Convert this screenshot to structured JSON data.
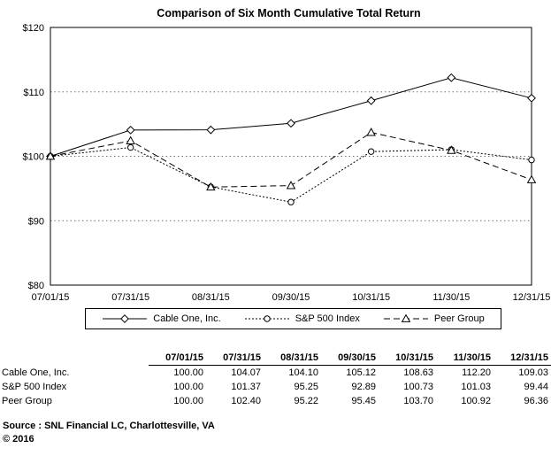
{
  "chart": {
    "title": "Comparison of Six Month Cumulative Total Return"
  },
  "chart_data": {
    "type": "line",
    "title": "Comparison of Six Month Cumulative Total Return",
    "x": [
      "07/01/15",
      "07/31/15",
      "08/31/15",
      "09/30/15",
      "10/31/15",
      "11/30/15",
      "12/31/15"
    ],
    "series": [
      {
        "name": "Cable One, Inc.",
        "values": [
          100.0,
          104.07,
          104.1,
          105.12,
          108.63,
          112.2,
          109.03
        ],
        "marker": "diamond",
        "dash": "solid"
      },
      {
        "name": "S&P 500 Index",
        "values": [
          100.0,
          101.37,
          95.25,
          92.89,
          100.73,
          101.03,
          99.44
        ],
        "marker": "circle",
        "dash": "dotted"
      },
      {
        "name": "Peer Group",
        "values": [
          100.0,
          102.4,
          95.22,
          95.45,
          103.7,
          100.92,
          96.36
        ],
        "marker": "triangle",
        "dash": "dashed"
      }
    ],
    "ylim": [
      80,
      120
    ],
    "ytick_step": 10,
    "ytick_labels": [
      "$80",
      "$90",
      "$100",
      "$110",
      "$120"
    ],
    "grid": true,
    "legend_position": "bottom",
    "line_color": "#000000",
    "background": "#ffffff"
  },
  "table": {
    "columns": [
      "07/01/15",
      "07/31/15",
      "08/31/15",
      "09/30/15",
      "10/31/15",
      "11/30/15",
      "12/31/15"
    ],
    "rows": [
      {
        "label": "Cable One,  Inc.",
        "values": [
          "100.00",
          "104.07",
          "104.10",
          "105.12",
          "108.63",
          "112.20",
          "109.03"
        ]
      },
      {
        "label": "S&P 500 Index",
        "values": [
          "100.00",
          "101.37",
          "95.25",
          "92.89",
          "100.73",
          "101.03",
          "99.44"
        ]
      },
      {
        "label": "Peer Group",
        "values": [
          "100.00",
          "102.40",
          "95.22",
          "95.45",
          "103.70",
          "100.92",
          "96.36"
        ]
      }
    ]
  },
  "footer": {
    "source_label": "Source :",
    "source_text": "SNL Financial LC, Charlottesville, VA",
    "copyright": "© 2016"
  }
}
